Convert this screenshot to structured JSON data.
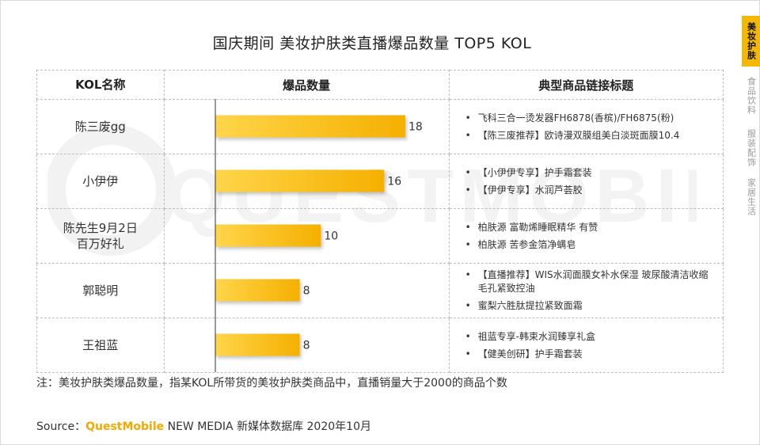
{
  "title": "国庆期间 美妆护肤类直播爆品数量 TOP5 KOL",
  "watermark": "QUESTMOBILE",
  "side_nav": [
    "美妆护肤",
    "食品饮料",
    "服装配饰",
    "家居生活"
  ],
  "table": {
    "headers": [
      "KOL名称",
      "爆品数量",
      "典型商品链接标题"
    ]
  },
  "chart_data": {
    "type": "bar",
    "orientation": "horizontal",
    "categories": [
      "陈三废gg",
      "小伊伊",
      "陈先生9月2日\n百万好礼",
      "郭聪明",
      "王祖蓝"
    ],
    "values": [
      18,
      16,
      10,
      8,
      8
    ],
    "value_labels": [
      "18",
      "16",
      "10",
      "8",
      "8"
    ],
    "xlim": [
      0,
      18
    ],
    "bar_color_start": "#ffd54a",
    "bar_color_end": "#f5b000",
    "grid": false
  },
  "rows": [
    {
      "name": "陈三废gg",
      "products": [
        "飞科三合一烫发器FH6878(香槟)/FH6875(粉)",
        "【陈三废推荐】欧诗漫双膜组美白淡斑面膜10.4"
      ]
    },
    {
      "name": "小伊伊",
      "products": [
        "【小伊伊专享】护手霜套装",
        "【伊伊专享】水润芦荟胶"
      ]
    },
    {
      "name": "陈先生9月2日\n百万好礼",
      "products": [
        "柏肤源 富勒烯睡眠精华 有赞",
        "柏肤源 苦参金箔净螨皂"
      ]
    },
    {
      "name": "郭聪明",
      "products": [
        "【直播推荐】WIS水润面膜女补水保湿 玻尿酸清洁收缩毛孔紧致控油",
        "蜜梨六胜肽提拉紧致面霜"
      ]
    },
    {
      "name": "王祖蓝",
      "products": [
        "祖蓝专享-韩束水润臻享礼盒",
        "【健美创研】护手霜套装"
      ]
    }
  ],
  "note": "注：美妆护肤类爆品数量，指某KOL所带货的美妆护肤类商品中，直播销量大于2000的商品个数",
  "source": {
    "prefix": "Source：",
    "brand": "QuestMobile",
    "rest": " NEW MEDIA 新媒体数据库 2020年10月"
  }
}
